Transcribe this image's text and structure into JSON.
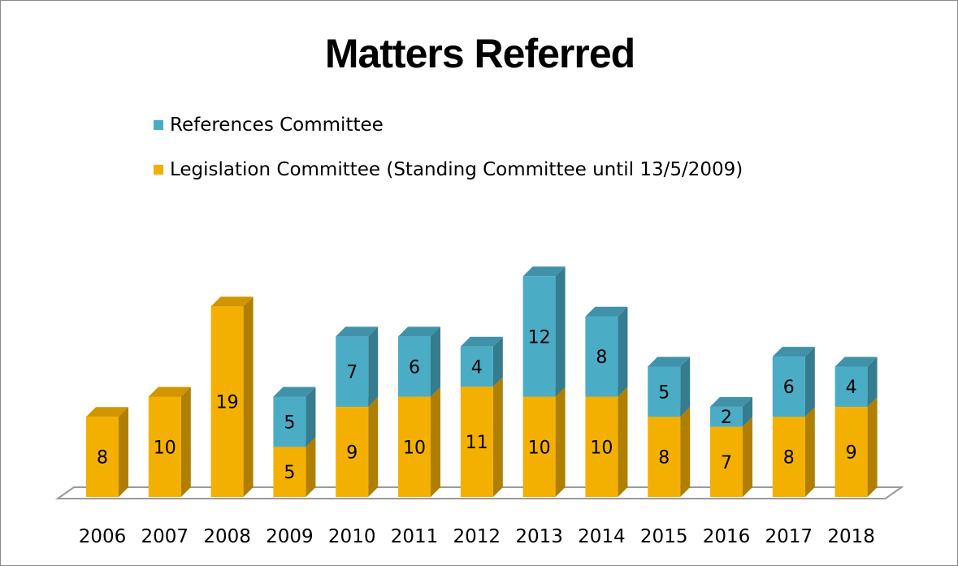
{
  "chart_data": {
    "type": "bar",
    "stacked": true,
    "three_d": true,
    "title": "Matters Referred",
    "categories": [
      "2006",
      "2007",
      "2008",
      "2009",
      "2010",
      "2011",
      "2012",
      "2013",
      "2014",
      "2015",
      "2016",
      "2017",
      "2018"
    ],
    "series": [
      {
        "name": "Legislation Committee (Standing Committee until 13/5/2009)",
        "color": "#f4b000",
        "values": [
          8,
          10,
          19,
          5,
          9,
          10,
          11,
          10,
          10,
          8,
          7,
          8,
          9
        ]
      },
      {
        "name": "References Committee",
        "color": "#4bacc6",
        "values": [
          null,
          null,
          null,
          5,
          7,
          6,
          4,
          12,
          8,
          5,
          2,
          6,
          4
        ]
      }
    ],
    "legend_position": "top-left",
    "grid": false
  }
}
